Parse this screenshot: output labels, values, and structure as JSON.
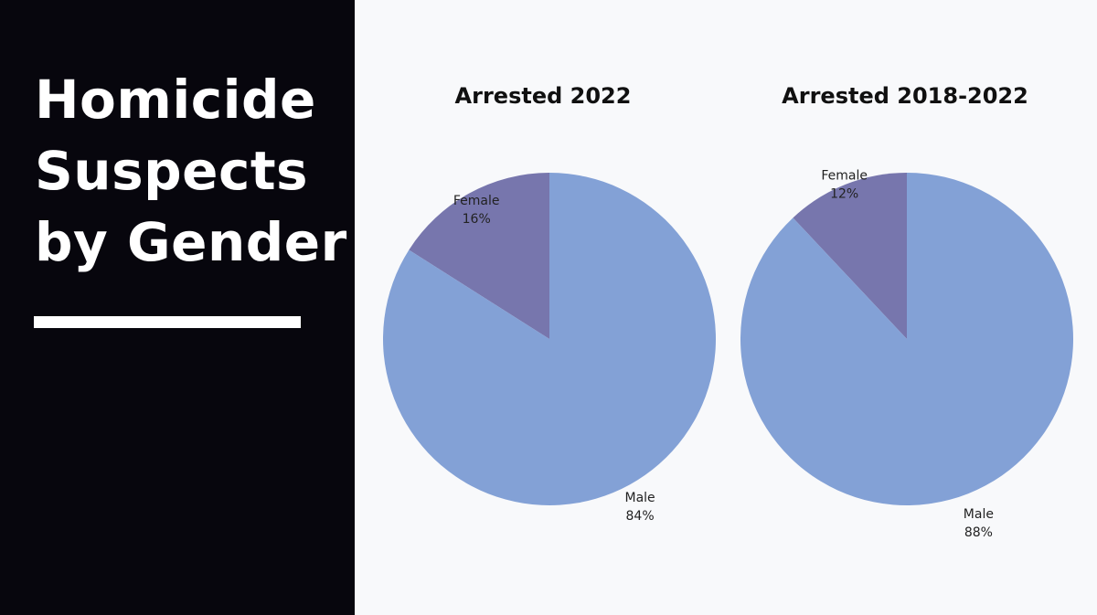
{
  "headline": {
    "lines": [
      "Homicide",
      "Suspects",
      "by Gender"
    ]
  },
  "colors": {
    "panel_background": "#07060d",
    "chart_background": "#f8f9fb",
    "male_slice": "#83a1d6",
    "female_slice": "#7776ad"
  },
  "chart_data": [
    {
      "type": "pie",
      "title": "Arrested 2022",
      "labels": [
        "Female",
        "Male"
      ],
      "values": [
        16,
        84
      ],
      "value_labels": [
        "16%",
        "84%"
      ],
      "colors": [
        "#7776ad",
        "#83a1d6"
      ]
    },
    {
      "type": "pie",
      "title": "Arrested 2018-2022",
      "labels": [
        "Female",
        "Male"
      ],
      "values": [
        12,
        88
      ],
      "value_labels": [
        "12%",
        "88%"
      ],
      "colors": [
        "#7776ad",
        "#83a1d6"
      ]
    }
  ]
}
